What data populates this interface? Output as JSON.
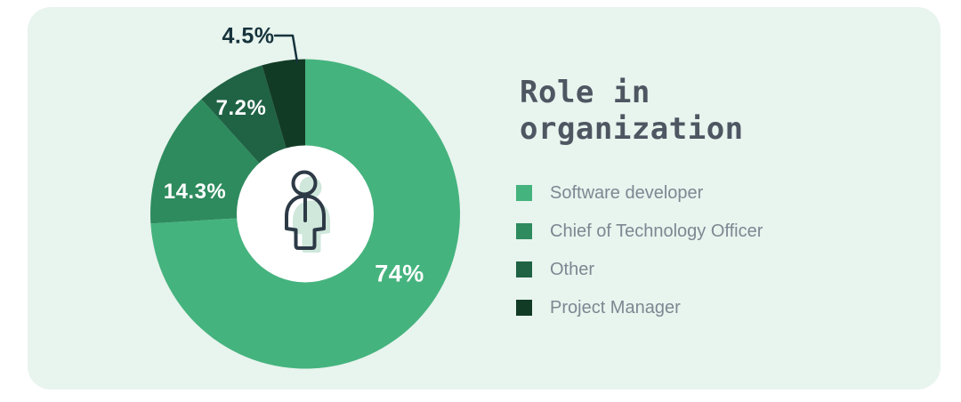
{
  "card": {
    "background": "#e8f4ee"
  },
  "title": {
    "text": "Role in organization",
    "lines": [
      "Role in",
      "organization"
    ],
    "color": "#4e5662"
  },
  "chart_data": {
    "type": "pie",
    "variant": "donut",
    "title": "Role in organization",
    "categories": [
      "Software developer",
      "Chief of Technology Officer",
      "Other",
      "Project Manager"
    ],
    "values": [
      74,
      14.3,
      7.2,
      4.5
    ],
    "value_labels": [
      "74%",
      "14.3%",
      "7.2%",
      "4.5%"
    ],
    "colors": [
      "#45b37e",
      "#2e8b5e",
      "#1f6244",
      "#123b25"
    ],
    "start_angle_deg": 0,
    "direction": "clockwise",
    "donut_hole_color": "#ffffff",
    "center_icon": "person-icon",
    "legend_position": "right",
    "label_colors": {
      "inside": "#ffffff",
      "outside_callout": "#16333c"
    }
  }
}
